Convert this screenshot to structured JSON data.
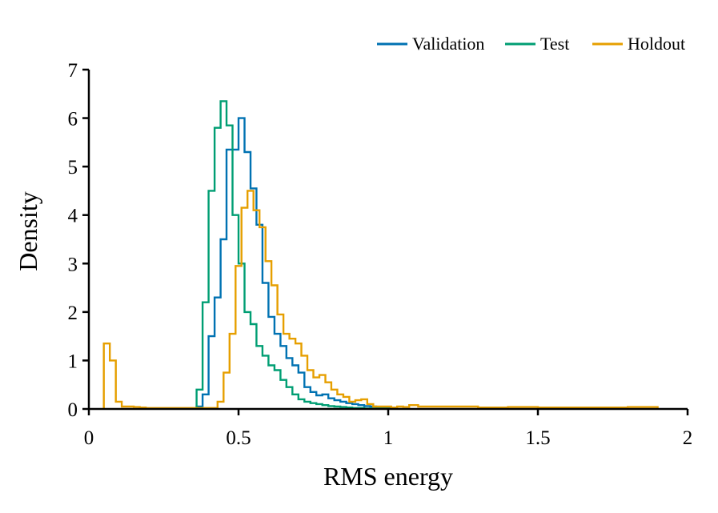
{
  "chart_data": {
    "type": "histogram-step",
    "title": "",
    "xlabel": "RMS energy",
    "ylabel": "Density",
    "xlim": [
      0,
      2
    ],
    "ylim": [
      0,
      7
    ],
    "xticks": [
      0,
      0.5,
      1,
      1.5,
      2
    ],
    "xtick_labels": [
      "0",
      "0.5",
      "1",
      "1.5",
      "2"
    ],
    "yticks": [
      0,
      1,
      2,
      3,
      4,
      5,
      6,
      7
    ],
    "ytick_labels": [
      "0",
      "1",
      "2",
      "3",
      "4",
      "5",
      "6",
      "7"
    ],
    "legend_position": "top-right",
    "series": [
      {
        "name": "Validation",
        "color": "#0072B2",
        "edges": [
          0.36,
          0.38,
          0.4,
          0.42,
          0.44,
          0.46,
          0.48,
          0.5,
          0.52,
          0.54,
          0.56,
          0.58,
          0.6,
          0.62,
          0.64,
          0.66,
          0.68,
          0.7,
          0.72,
          0.74,
          0.76,
          0.78,
          0.8,
          0.82,
          0.84,
          0.86,
          0.88,
          0.9,
          0.92,
          0.94,
          0.96,
          0.98,
          1.0,
          1.02
        ],
        "values": [
          0.05,
          0.3,
          1.5,
          2.3,
          3.5,
          5.35,
          5.35,
          6.0,
          5.3,
          4.55,
          3.8,
          2.6,
          1.9,
          1.55,
          1.3,
          1.05,
          0.9,
          0.75,
          0.45,
          0.35,
          0.28,
          0.3,
          0.22,
          0.18,
          0.15,
          0.12,
          0.1,
          0.08,
          0.06,
          0.05,
          0.04,
          0.03,
          0.02
        ]
      },
      {
        "name": "Test",
        "color": "#009E73",
        "edges": [
          0.36,
          0.38,
          0.4,
          0.42,
          0.44,
          0.46,
          0.48,
          0.5,
          0.52,
          0.54,
          0.56,
          0.58,
          0.6,
          0.62,
          0.64,
          0.66,
          0.68,
          0.7,
          0.72,
          0.74,
          0.76,
          0.78,
          0.8,
          0.82,
          0.84,
          0.86,
          0.88,
          0.9,
          0.92,
          0.94,
          0.96,
          0.98,
          1.0
        ],
        "values": [
          0.4,
          2.2,
          4.5,
          5.8,
          6.35,
          5.85,
          4.0,
          3.0,
          2.0,
          1.75,
          1.3,
          1.1,
          0.9,
          0.8,
          0.6,
          0.45,
          0.3,
          0.2,
          0.15,
          0.12,
          0.1,
          0.08,
          0.06,
          0.05,
          0.04,
          0.03,
          0.02,
          0.02,
          0.01,
          0.01,
          0.01,
          0.01
        ]
      },
      {
        "name": "Holdout",
        "color": "#E69F00",
        "edges": [
          0.05,
          0.07,
          0.09,
          0.11,
          0.13,
          0.15,
          0.17,
          0.19,
          0.21,
          0.23,
          0.25,
          0.27,
          0.29,
          0.31,
          0.33,
          0.35,
          0.37,
          0.39,
          0.41,
          0.43,
          0.45,
          0.47,
          0.49,
          0.51,
          0.53,
          0.55,
          0.57,
          0.59,
          0.61,
          0.63,
          0.65,
          0.67,
          0.69,
          0.71,
          0.73,
          0.75,
          0.77,
          0.79,
          0.81,
          0.83,
          0.85,
          0.87,
          0.89,
          0.91,
          0.93,
          0.95,
          0.97,
          0.99,
          1.01,
          1.03,
          1.05,
          1.07,
          1.1,
          1.15,
          1.2,
          1.25,
          1.3,
          1.4,
          1.5,
          1.6,
          1.7,
          1.8,
          1.9
        ],
        "values": [
          1.35,
          1.0,
          0.15,
          0.05,
          0.05,
          0.04,
          0.03,
          0.02,
          0.02,
          0.02,
          0.02,
          0.02,
          0.02,
          0.02,
          0.02,
          0.02,
          0.02,
          0.02,
          0.02,
          0.15,
          0.75,
          1.55,
          2.95,
          4.15,
          4.5,
          4.1,
          3.75,
          3.05,
          2.55,
          1.95,
          1.55,
          1.45,
          1.35,
          1.1,
          0.8,
          0.65,
          0.7,
          0.55,
          0.4,
          0.3,
          0.25,
          0.15,
          0.18,
          0.2,
          0.1,
          0.05,
          0.05,
          0.05,
          0.03,
          0.05,
          0.04,
          0.08,
          0.05,
          0.05,
          0.05,
          0.05,
          0.03,
          0.04,
          0.03,
          0.03,
          0.03,
          0.04
        ]
      }
    ]
  }
}
